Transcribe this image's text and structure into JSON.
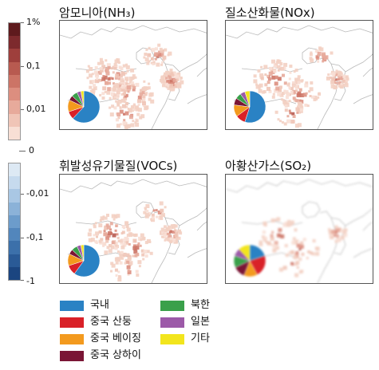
{
  "chart_data": {
    "type": "heatmap",
    "colorbar_positive": {
      "tick_labels": [
        "1%",
        "0,1",
        "0,01"
      ],
      "colors": [
        "#5e1a1d",
        "#7d2a2d",
        "#9e3f3c",
        "#b85a50",
        "#cc7466",
        "#dc8e7f",
        "#e7aa9b",
        "#f0c5b7",
        "#f8dfd5"
      ]
    },
    "zero_label": "0",
    "colorbar_negative": {
      "tick_labels": [
        "-0,01",
        "-0,1",
        "-1"
      ],
      "colors": [
        "#dde9f4",
        "#c6daee",
        "#a9c7e4",
        "#8bb2d8",
        "#6c9ccb",
        "#5286bc",
        "#3c70aa",
        "#2a5a96",
        "#1b4580"
      ]
    },
    "panels": [
      {
        "title": "암모니아(NH₃)",
        "pie": [
          0.62,
          0.08,
          0.12,
          0.05,
          0.06,
          0.04,
          0.03
        ],
        "intensity": "high"
      },
      {
        "title": "질소산화물(NOx)",
        "pie": [
          0.55,
          0.1,
          0.12,
          0.07,
          0.06,
          0.05,
          0.05
        ],
        "intensity": "medium"
      },
      {
        "title": "휘발성유기물질(VOCs)",
        "pie": [
          0.6,
          0.1,
          0.12,
          0.05,
          0.06,
          0.04,
          0.03
        ],
        "intensity": "medium"
      },
      {
        "title": "아황산가스(SO₂)",
        "pie": [
          0.2,
          0.22,
          0.14,
          0.12,
          0.12,
          0.08,
          0.12
        ],
        "intensity": "low",
        "blurred": true
      }
    ],
    "legend": [
      {
        "label": "국내",
        "color": "#2a82c4"
      },
      {
        "label": "중국 산둥",
        "color": "#d92128"
      },
      {
        "label": "중국 베이징",
        "color": "#f39a1e"
      },
      {
        "label": "중국 상하이",
        "color": "#7a1535"
      },
      {
        "label": "북한",
        "color": "#3aa04a"
      },
      {
        "label": "일본",
        "color": "#9c5aa8"
      },
      {
        "label": "기타",
        "color": "#f2e51d"
      }
    ]
  }
}
